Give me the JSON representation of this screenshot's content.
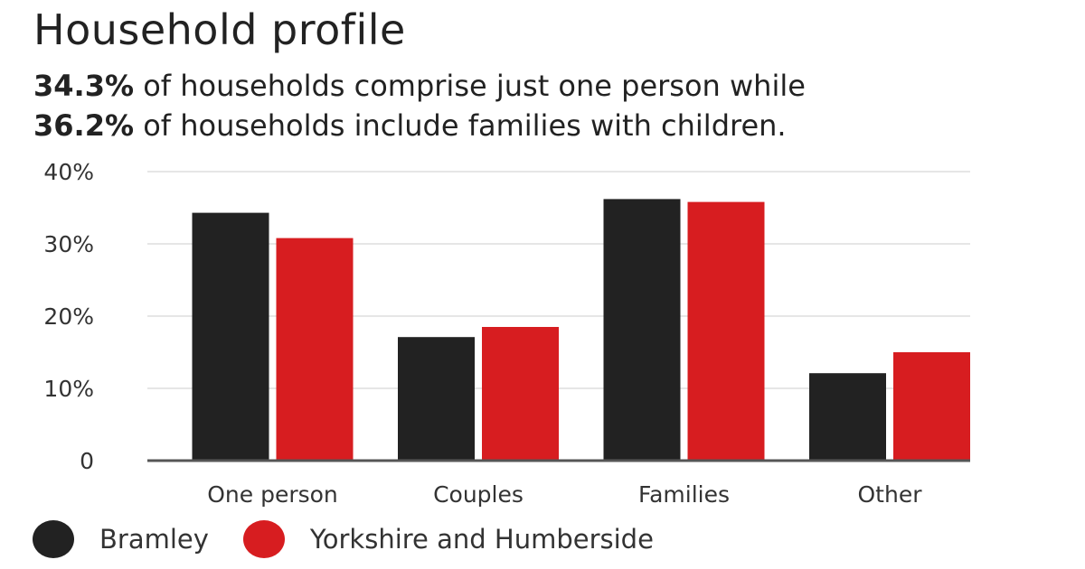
{
  "header": {
    "title": "Household profile",
    "line1_bold": "34.3%",
    "line1_text": " of households comprise just one person while",
    "line2_bold": "36.2%",
    "line2_text": " of households include families with children."
  },
  "colors": {
    "bramley": "#222222",
    "yorkshire": "#d71d20",
    "grid": "#e6e6e6",
    "axis": "#555555"
  },
  "chart_data": {
    "type": "bar",
    "categories": [
      "One person",
      "Couples",
      "Families",
      "Other"
    ],
    "series": [
      {
        "name": "Bramley",
        "values": [
          34.3,
          17.1,
          36.2,
          12.1
        ]
      },
      {
        "name": "Yorkshire and Humberside",
        "values": [
          30.8,
          18.5,
          35.8,
          15.0
        ]
      }
    ],
    "ylim": [
      0,
      40
    ],
    "yticks": [
      0,
      10,
      20,
      30,
      40
    ],
    "ytick_labels": [
      "0",
      "10%",
      "20%",
      "30%",
      "40%"
    ],
    "grid": true,
    "legend_position": "bottom-left"
  },
  "legend": {
    "items": [
      {
        "label": "Bramley",
        "color": "#222222"
      },
      {
        "label": "Yorkshire and Humberside",
        "color": "#d71d20"
      }
    ]
  }
}
